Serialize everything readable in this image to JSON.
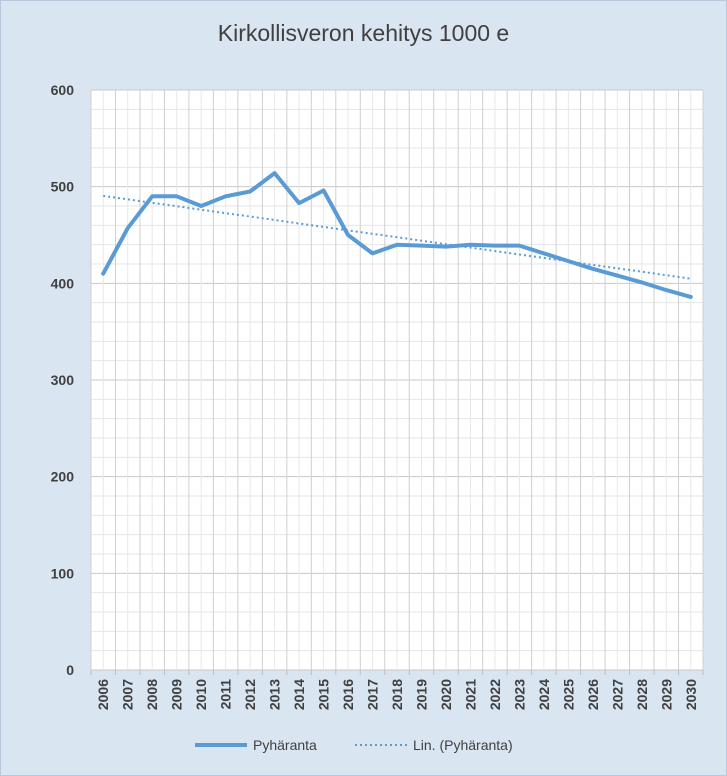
{
  "chart_data": {
    "type": "line",
    "title": "Kirkollisveron kehitys 1000 e",
    "xlabel": "",
    "ylabel": "",
    "categories": [
      "2006",
      "2007",
      "2008",
      "2009",
      "2010",
      "2011",
      "2012",
      "2013",
      "2014",
      "2015",
      "2016",
      "2017",
      "2018",
      "2019",
      "2020",
      "2021",
      "2022",
      "2023",
      "2024",
      "2025",
      "2026",
      "2027",
      "2028",
      "2029",
      "2030"
    ],
    "ylim": [
      0,
      600
    ],
    "yticks": [
      0,
      100,
      200,
      300,
      400,
      500,
      600
    ],
    "grid": true,
    "legend_position": "bottom",
    "series": [
      {
        "name": "Pyhäranta",
        "color": "#5b9bd5",
        "style": "solid",
        "values": [
          410,
          457,
          490,
          490,
          480,
          490,
          495,
          514,
          483,
          496,
          450,
          431,
          440,
          439,
          438,
          440,
          439,
          439,
          431,
          423,
          415,
          408,
          401,
          393,
          386
        ]
      },
      {
        "name": "Lin. (Pyhäranta)",
        "color": "#5b9bd5",
        "style": "dotted",
        "trendline_of": "Pyhäranta",
        "values": [
          490.5,
          486.9,
          483.3,
          479.8,
          476.2,
          472.6,
          469.1,
          465.5,
          461.9,
          458.4,
          454.8,
          451.2,
          447.7,
          444.1,
          440.5,
          437.0,
          433.4,
          429.8,
          426.3,
          422.7,
          419.1,
          415.6,
          412.0,
          408.4,
          404.8
        ]
      }
    ]
  }
}
